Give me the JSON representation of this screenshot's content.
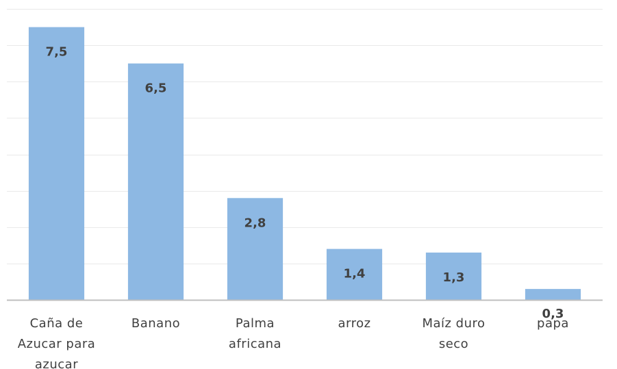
{
  "chart_data": {
    "type": "bar",
    "categories": [
      [
        "Caña de",
        "Azucar para",
        "azucar"
      ],
      [
        "Banano"
      ],
      [
        "Palma",
        "africana"
      ],
      [
        "arroz"
      ],
      [
        "Maíz duro",
        "seco"
      ],
      [
        "papa"
      ]
    ],
    "values": [
      7.5,
      6.5,
      2.8,
      1.4,
      1.3,
      0.3
    ],
    "data_labels": [
      "7,5",
      "6,5",
      "2,8",
      "1,4",
      "1,3",
      "0,3"
    ],
    "ylim": [
      0,
      8
    ],
    "grid": true,
    "bar_color": "#8db8e3",
    "gridline_color": "#e9e9e9",
    "axis_color": "#bfbfbf",
    "label_color": "#404040"
  }
}
